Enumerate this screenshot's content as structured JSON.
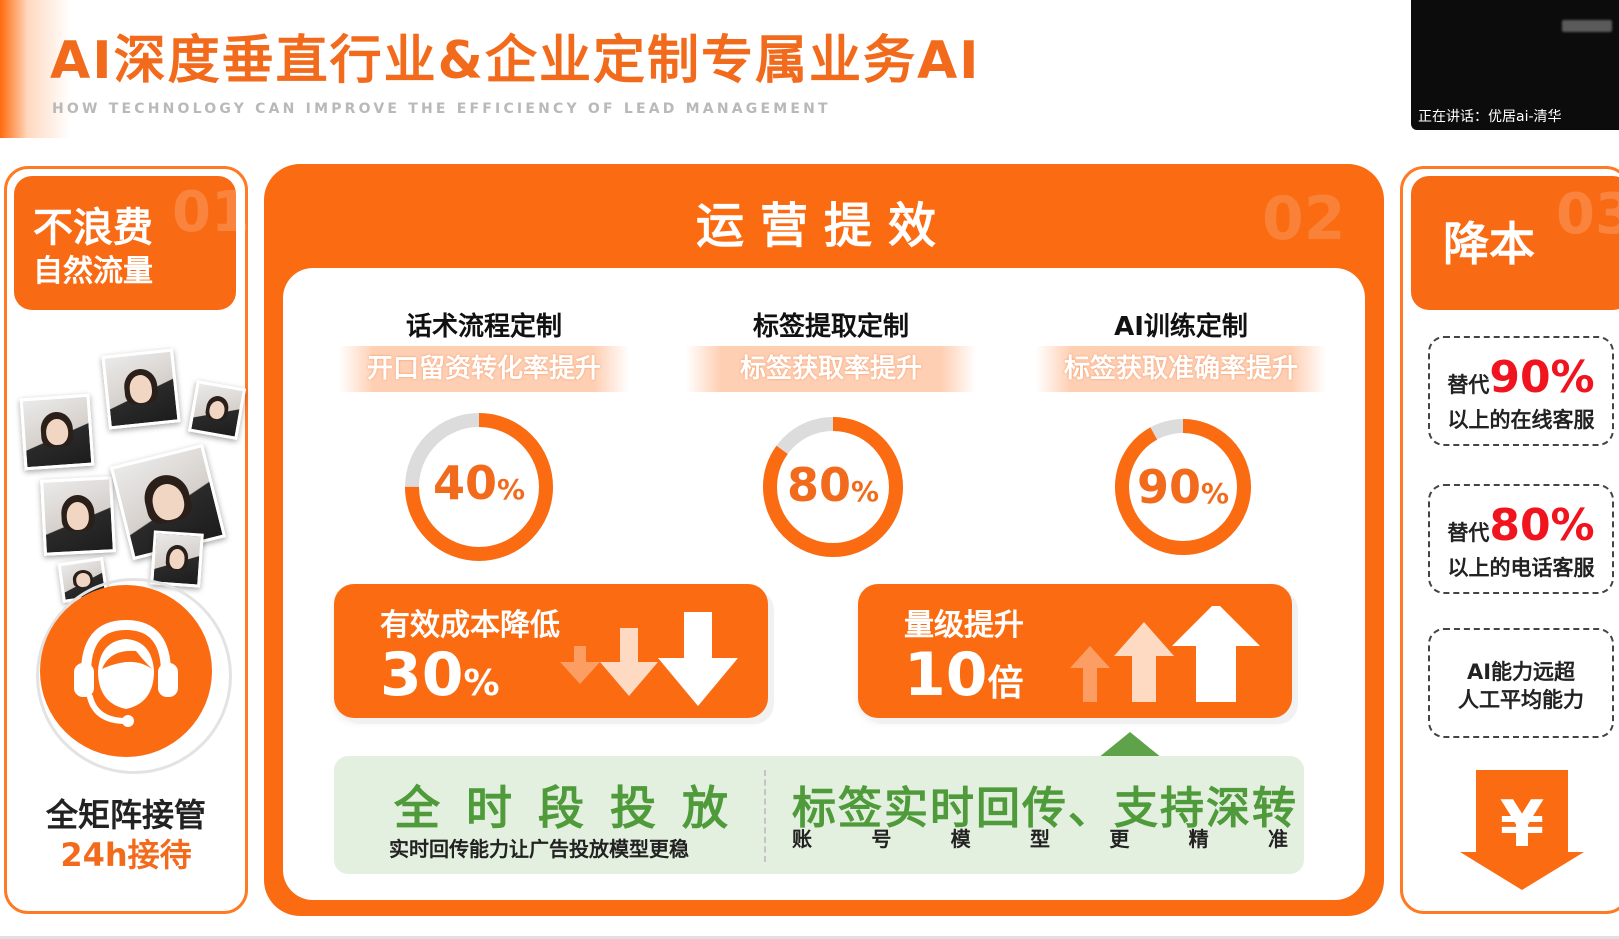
{
  "header": {
    "title": "AI深度垂直行业&企业定制专属业务AI",
    "subtitle": "HOW TECHNOLOGY CAN IMPROVE THE EFFICIENCY OF LEAD MANAGEMENT"
  },
  "video_call": {
    "speaker_caption": "正在讲话：优居ai-清华"
  },
  "left_panel": {
    "number": "01",
    "heading_line1": "不浪费",
    "heading_line2": "自然流量",
    "footer_line1": "全矩阵接管",
    "footer_line2": "24h接待",
    "icon": "headset-agent-icon"
  },
  "middle_panel": {
    "number": "02",
    "title": "运营提效",
    "columns": [
      {
        "title": "话术流程定制",
        "band": "开口留资转化率提升",
        "value": "40",
        "unit": "%",
        "percent": 75
      },
      {
        "title": "标签提取定制",
        "band": "标签获取率提升",
        "value": "80",
        "unit": "%",
        "percent": 85
      },
      {
        "title": "AI训练定制",
        "band": "标签获取准确率提升",
        "value": "90",
        "unit": "%",
        "percent": 92
      }
    ],
    "cards": [
      {
        "title": "有效成本降低",
        "value": "30",
        "unit": "%",
        "icon": "arrow-down-icon"
      },
      {
        "title": "量级提升",
        "value": "10",
        "unit": "倍",
        "icon": "arrow-up-icon"
      }
    ],
    "green_strip": {
      "left_title": "全时段投放",
      "left_sub": "实时回传能力让广告投放模型更稳",
      "right_title": "标签实时回传、支持深转",
      "right_sub_chars": [
        "账",
        "号",
        "模",
        "型",
        "更",
        "精",
        "准"
      ]
    }
  },
  "right_panel": {
    "number": "03",
    "heading": "降本",
    "boxes": [
      {
        "prefix": "替代",
        "big": "90%",
        "line2": "以上的在线客服"
      },
      {
        "prefix": "替代",
        "big": "80%",
        "line2": "以上的电话客服"
      },
      {
        "line1": "AI能力远超",
        "line2": "人工平均能力"
      }
    ],
    "icon": "yen-down-arrow-icon",
    "icon_glyph": "¥"
  },
  "colors": {
    "accent": "#fa6b12",
    "green": "#4f9a3a",
    "red": "#f0141e",
    "donut_track": "#dcdcdc"
  }
}
